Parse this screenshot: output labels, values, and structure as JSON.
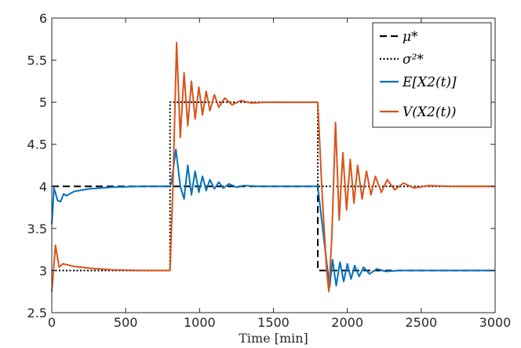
{
  "chart_data": {
    "type": "line",
    "title": "",
    "xlabel": "Time [min]",
    "ylabel": "",
    "xlim": [
      0,
      3000
    ],
    "ylim": [
      2.5,
      6
    ],
    "xticks": [
      0,
      500,
      1000,
      1500,
      2000,
      2500,
      3000
    ],
    "yticks": [
      2.5,
      3,
      3.5,
      4,
      4.5,
      5,
      5.5,
      6
    ],
    "xtick_labels": [
      "0",
      "500",
      "1000",
      "1500",
      "2000",
      "2500",
      "3000"
    ],
    "ytick_labels": [
      "2.5",
      "3",
      "3.5",
      "4",
      "4.5",
      "5",
      "5.5",
      "6"
    ],
    "grid": false,
    "legend_position": "top-right",
    "series": [
      {
        "name": "μ*",
        "legend_label": "μ*",
        "style": "dashed",
        "color": "#000000",
        "points": [
          [
            0,
            4
          ],
          [
            1800,
            4
          ],
          [
            1800,
            3
          ],
          [
            3000,
            3
          ]
        ]
      },
      {
        "name": "σ²*",
        "legend_label": "σ²*",
        "style": "dotted",
        "color": "#000000",
        "points": [
          [
            0,
            3
          ],
          [
            800,
            3
          ],
          [
            800,
            5
          ],
          [
            1800,
            5
          ],
          [
            1800,
            4
          ],
          [
            3000,
            4
          ]
        ]
      },
      {
        "name": "E[X2(t)]",
        "legend_label": "E[X2(t)]",
        "style": "solid",
        "color": "#0072BD",
        "points": [
          [
            0,
            3.55
          ],
          [
            15,
            3.98
          ],
          [
            40,
            3.83
          ],
          [
            60,
            3.82
          ],
          [
            80,
            3.91
          ],
          [
            100,
            3.89
          ],
          [
            150,
            3.94
          ],
          [
            250,
            3.97
          ],
          [
            400,
            3.99
          ],
          [
            600,
            4.0
          ],
          [
            800,
            4.0
          ],
          [
            810,
            4.05
          ],
          [
            840,
            4.44
          ],
          [
            870,
            4.0
          ],
          [
            895,
            3.85
          ],
          [
            920,
            4.25
          ],
          [
            945,
            3.9
          ],
          [
            970,
            4.18
          ],
          [
            995,
            3.93
          ],
          [
            1020,
            4.12
          ],
          [
            1045,
            3.95
          ],
          [
            1070,
            4.08
          ],
          [
            1100,
            3.97
          ],
          [
            1130,
            4.05
          ],
          [
            1160,
            3.98
          ],
          [
            1200,
            4.03
          ],
          [
            1250,
            3.99
          ],
          [
            1300,
            4.01
          ],
          [
            1400,
            4.0
          ],
          [
            1800,
            4.0
          ],
          [
            1840,
            3.4
          ],
          [
            1880,
            2.8
          ],
          [
            1900,
            3.13
          ],
          [
            1925,
            2.82
          ],
          [
            1950,
            3.1
          ],
          [
            1975,
            2.87
          ],
          [
            2000,
            3.08
          ],
          [
            2025,
            2.9
          ],
          [
            2050,
            3.06
          ],
          [
            2080,
            2.93
          ],
          [
            2110,
            3.04
          ],
          [
            2150,
            2.96
          ],
          [
            2200,
            3.02
          ],
          [
            2260,
            2.99
          ],
          [
            2350,
            3.0
          ],
          [
            3000,
            3.0
          ]
        ]
      },
      {
        "name": "V(X2(t))",
        "legend_label": "V(X2(t))",
        "style": "solid",
        "color": "#D95319",
        "points": [
          [
            0,
            2.75
          ],
          [
            25,
            3.3
          ],
          [
            50,
            3.04
          ],
          [
            75,
            3.08
          ],
          [
            100,
            3.07
          ],
          [
            150,
            3.05
          ],
          [
            250,
            3.03
          ],
          [
            400,
            3.01
          ],
          [
            600,
            3.0
          ],
          [
            800,
            3.0
          ],
          [
            820,
            4.0
          ],
          [
            845,
            5.71
          ],
          [
            870,
            4.58
          ],
          [
            895,
            5.35
          ],
          [
            920,
            4.72
          ],
          [
            945,
            5.25
          ],
          [
            970,
            4.8
          ],
          [
            995,
            5.18
          ],
          [
            1020,
            4.85
          ],
          [
            1045,
            5.13
          ],
          [
            1070,
            4.9
          ],
          [
            1100,
            5.09
          ],
          [
            1130,
            4.94
          ],
          [
            1170,
            5.05
          ],
          [
            1220,
            4.97
          ],
          [
            1280,
            5.02
          ],
          [
            1350,
            4.99
          ],
          [
            1450,
            5.0
          ],
          [
            1800,
            5.0
          ],
          [
            1830,
            3.9
          ],
          [
            1860,
            3.0
          ],
          [
            1875,
            2.75
          ],
          [
            1895,
            3.4
          ],
          [
            1920,
            4.76
          ],
          [
            1945,
            3.6
          ],
          [
            1970,
            4.4
          ],
          [
            1995,
            3.72
          ],
          [
            2020,
            4.32
          ],
          [
            2045,
            3.8
          ],
          [
            2070,
            4.25
          ],
          [
            2100,
            3.85
          ],
          [
            2130,
            4.18
          ],
          [
            2160,
            3.9
          ],
          [
            2190,
            4.12
          ],
          [
            2230,
            3.93
          ],
          [
            2270,
            4.08
          ],
          [
            2320,
            3.96
          ],
          [
            2380,
            4.04
          ],
          [
            2450,
            3.98
          ],
          [
            2550,
            4.01
          ],
          [
            2700,
            4.0
          ],
          [
            3000,
            4.0
          ]
        ]
      }
    ]
  }
}
